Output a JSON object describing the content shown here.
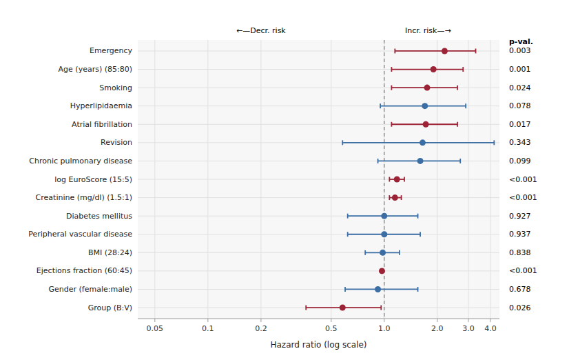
{
  "chart_data": {
    "type": "forest",
    "xlabel": "Hazard ratio (log scale)",
    "categories": [
      "Emergency",
      "Age (years) (85:80)",
      "Smoking",
      "Hyperlipidaemia",
      "Atrial fibrillation",
      "Revision",
      "Chronic pulmonary disease",
      "log EuroScore (15:5)",
      "Creatinine (mg/dl) (1.5:1)",
      "Diabetes mellitus",
      "Peripheral vascular disease",
      "BMI (28:24)",
      "Ejections fraction (60:45)",
      "Gender (female:male)",
      "Group (B:V)"
    ],
    "values": [
      2.2,
      1.9,
      1.75,
      1.7,
      1.72,
      1.65,
      1.6,
      1.18,
      1.15,
      1.0,
      1.0,
      0.98,
      0.97,
      0.92,
      0.58
    ],
    "ci_low": [
      1.15,
      1.1,
      1.1,
      0.95,
      1.1,
      0.58,
      0.92,
      1.07,
      1.07,
      0.62,
      0.62,
      0.78,
      0.96,
      0.6,
      0.36
    ],
    "ci_high": [
      3.3,
      2.8,
      2.6,
      2.9,
      2.6,
      4.2,
      2.7,
      1.3,
      1.25,
      1.55,
      1.6,
      1.22,
      0.98,
      1.55,
      0.96
    ],
    "p_values": [
      "0.003",
      "0.001",
      "0.024",
      "0.078",
      "0.017",
      "0.343",
      "0.099",
      "<0.001",
      "<0.001",
      "0.927",
      "0.937",
      "0.838",
      "<0.001",
      "0.678",
      "0.026"
    ],
    "p_value_header": "p-val.",
    "annotations": [
      "←—Decr. risk",
      "Incr. risk—→"
    ],
    "colors": [
      "#9B2335",
      "#9B2335",
      "#9B2335",
      "#3A6EA5",
      "#9B2335",
      "#3A6EA5",
      "#3A6EA5",
      "#9B2335",
      "#9B2335",
      "#3A6EA5",
      "#3A6EA5",
      "#3A6EA5",
      "#9B2335",
      "#3A6EA5",
      "#9B2335"
    ],
    "log": "x",
    "xlim": [
      0.04,
      4.5
    ],
    "xticks": [
      0.05,
      0.1,
      0.2,
      0.5,
      {
        "value": 1,
        "label": "1.0"
      },
      {
        "value": 2,
        "label": "2.0"
      },
      {
        "value": 3,
        "label": "3.0"
      },
      {
        "value": 4,
        "label": "4.0"
      }
    ],
    "ref_line": 1,
    "grid": true
  }
}
